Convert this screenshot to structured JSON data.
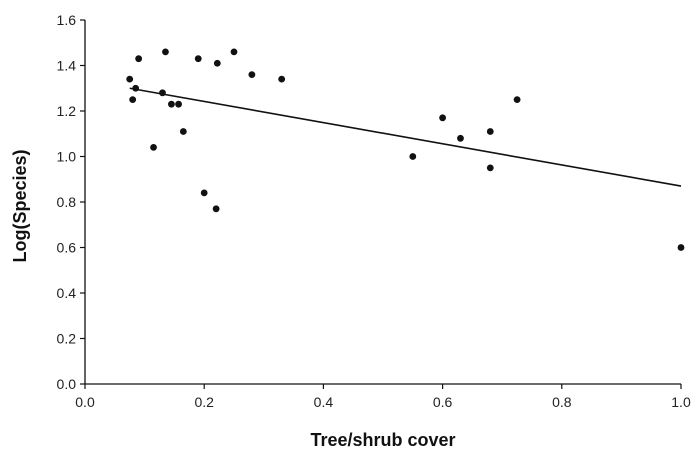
{
  "chart_data": {
    "type": "scatter",
    "title": "",
    "xlabel": "Tree/shrub cover",
    "ylabel": "Log(Species)",
    "xlim": [
      0.0,
      1.0
    ],
    "ylim": [
      0.0,
      1.6
    ],
    "x_ticks": [
      0.0,
      0.2,
      0.4,
      0.6,
      0.8,
      1.0
    ],
    "y_ticks": [
      0.0,
      0.2,
      0.4,
      0.6,
      0.8,
      1.0,
      1.2,
      1.4,
      1.6
    ],
    "x_tick_labels": [
      "0.0",
      "0.2",
      "0.4",
      "0.6",
      "0.8",
      "1.0"
    ],
    "y_tick_labels": [
      "0.0",
      "0.2",
      "0.4",
      "0.6",
      "0.8",
      "1.0",
      "1.2",
      "1.4",
      "1.6"
    ],
    "grid": false,
    "legend": "none",
    "colors": {
      "point": "#111111",
      "line": "#111111",
      "axis": "#111111"
    },
    "points": [
      {
        "x": 0.075,
        "y": 1.34
      },
      {
        "x": 0.08,
        "y": 1.25
      },
      {
        "x": 0.085,
        "y": 1.3
      },
      {
        "x": 0.09,
        "y": 1.43
      },
      {
        "x": 0.115,
        "y": 1.04
      },
      {
        "x": 0.13,
        "y": 1.28
      },
      {
        "x": 0.135,
        "y": 1.46
      },
      {
        "x": 0.145,
        "y": 1.23
      },
      {
        "x": 0.157,
        "y": 1.23
      },
      {
        "x": 0.165,
        "y": 1.11
      },
      {
        "x": 0.19,
        "y": 1.43
      },
      {
        "x": 0.2,
        "y": 0.84
      },
      {
        "x": 0.22,
        "y": 0.77
      },
      {
        "x": 0.222,
        "y": 1.41
      },
      {
        "x": 0.25,
        "y": 1.46
      },
      {
        "x": 0.28,
        "y": 1.36
      },
      {
        "x": 0.33,
        "y": 1.34
      },
      {
        "x": 0.55,
        "y": 1.0
      },
      {
        "x": 0.6,
        "y": 1.17
      },
      {
        "x": 0.63,
        "y": 1.08
      },
      {
        "x": 0.68,
        "y": 1.11
      },
      {
        "x": 0.68,
        "y": 0.95
      },
      {
        "x": 0.725,
        "y": 1.25
      },
      {
        "x": 1.0,
        "y": 0.6
      }
    ],
    "trendline": {
      "x": [
        0.075,
        1.0
      ],
      "y": [
        1.3,
        0.87
      ]
    }
  }
}
